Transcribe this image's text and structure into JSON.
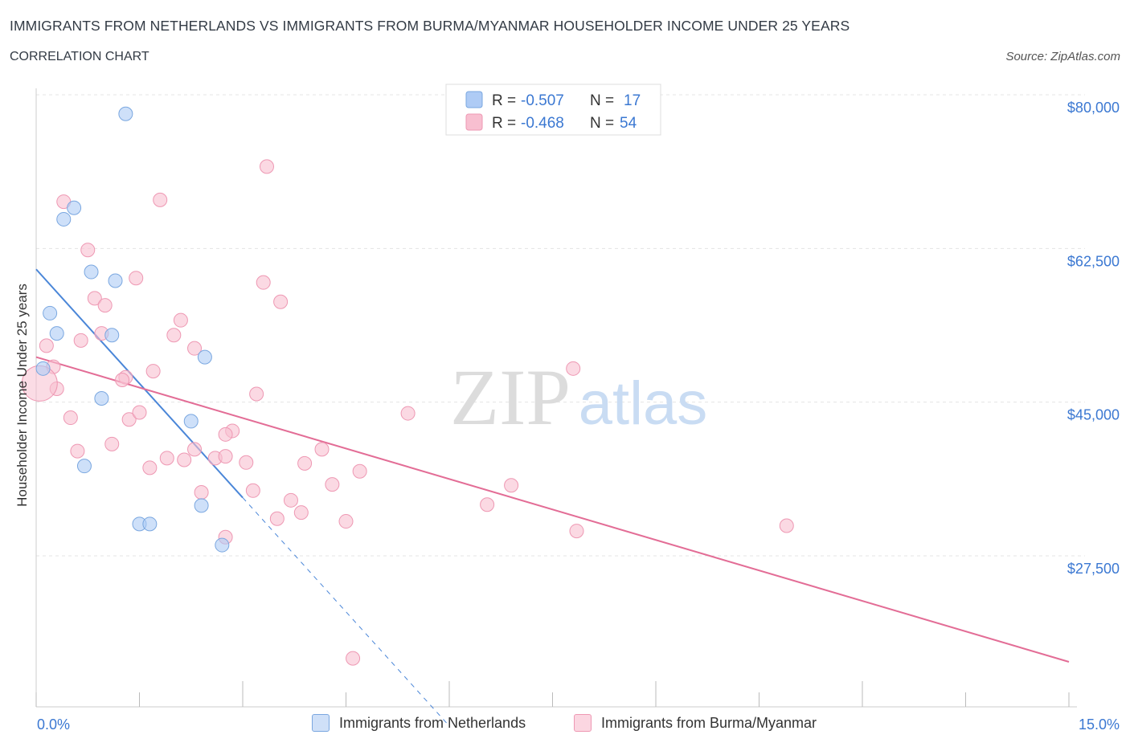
{
  "header": {
    "title": "IMMIGRANTS FROM NETHERLANDS VS IMMIGRANTS FROM BURMA/MYANMAR HOUSEHOLDER INCOME UNDER 25 YEARS",
    "subtitle": "CORRELATION CHART",
    "source": "Source: ZipAtlas.com"
  },
  "watermark": {
    "zip": "ZIP",
    "atlas": "atlas"
  },
  "legend_top": [
    {
      "r_label": "R =",
      "r_value": "-0.507",
      "n_label": "N =",
      "n_value": "17",
      "color": "#aecbf5"
    },
    {
      "r_label": "R =",
      "r_value": "-0.468",
      "n_label": "N =",
      "n_value": "54",
      "color": "#f8bfd0"
    }
  ],
  "legend_bottom": [
    {
      "label": "Immigrants from Netherlands",
      "color": "#aecbf5"
    },
    {
      "label": "Immigrants from Burma/Myanmar",
      "color": "#f8bfd0"
    }
  ],
  "chart_data": {
    "type": "scatter",
    "ylabel": "Householder Income Under 25 years",
    "xlim": [
      0,
      15
    ],
    "ylim": [
      10000,
      82000
    ],
    "x_tick_labels": [
      "0.0%",
      "15.0%"
    ],
    "y_ticks": [
      27500,
      45000,
      62500,
      80000
    ],
    "y_tick_labels": [
      "$27,500",
      "$45,000",
      "$62,500",
      "$80,000"
    ],
    "grid": true,
    "colors": {
      "netherlands": "#4a86d8",
      "burma": "#e36d96",
      "axis_text": "#3b78d2"
    },
    "series": [
      {
        "name": "Immigrants from Netherlands",
        "color": "#aecbf5",
        "stroke": "#7aa7e0",
        "points": [
          [
            1.3,
            79.2
          ],
          [
            0.4,
            67.2
          ],
          [
            0.55,
            68.5
          ],
          [
            0.8,
            61.2
          ],
          [
            1.15,
            60.2
          ],
          [
            0.2,
            56.5
          ],
          [
            0.3,
            54.2
          ],
          [
            1.1,
            54.0
          ],
          [
            0.1,
            50.2
          ],
          [
            2.45,
            51.5
          ],
          [
            0.95,
            46.8
          ],
          [
            2.25,
            44.2
          ],
          [
            0.7,
            39.1
          ],
          [
            2.4,
            34.6
          ],
          [
            1.5,
            32.5
          ],
          [
            1.65,
            32.5
          ],
          [
            2.7,
            30.1
          ]
        ],
        "trend": {
          "x0": 0.0,
          "y0": 61.5,
          "x1": 3.0,
          "y1": 35.5,
          "dash_x1": 6.0
        }
      },
      {
        "name": "Immigrants from Burma/Myanmar",
        "color": "#f8bfd0",
        "stroke": "#ee98b3",
        "points": [
          [
            0.4,
            69.2
          ],
          [
            1.8,
            69.4
          ],
          [
            3.35,
            73.2
          ],
          [
            0.75,
            63.7
          ],
          [
            1.45,
            60.5
          ],
          [
            3.3,
            60.0
          ],
          [
            0.85,
            58.2
          ],
          [
            3.55,
            57.8
          ],
          [
            1.0,
            57.4
          ],
          [
            2.1,
            55.7
          ],
          [
            0.95,
            54.2
          ],
          [
            2.0,
            54.0
          ],
          [
            0.65,
            53.4
          ],
          [
            0.15,
            52.8
          ],
          [
            2.3,
            52.5
          ],
          [
            0.25,
            50.4
          ],
          [
            1.7,
            49.9
          ],
          [
            1.3,
            49.2
          ],
          [
            1.25,
            48.9
          ],
          [
            0.3,
            47.9
          ],
          [
            3.2,
            47.3
          ],
          [
            7.8,
            50.2
          ],
          [
            5.4,
            45.1
          ],
          [
            0.5,
            44.6
          ],
          [
            1.35,
            44.4
          ],
          [
            1.5,
            45.2
          ],
          [
            2.85,
            43.1
          ],
          [
            2.75,
            42.7
          ],
          [
            1.1,
            41.6
          ],
          [
            0.6,
            40.8
          ],
          [
            4.15,
            41.0
          ],
          [
            2.3,
            41.0
          ],
          [
            1.9,
            40.0
          ],
          [
            2.6,
            40.0
          ],
          [
            2.75,
            40.2
          ],
          [
            2.15,
            39.8
          ],
          [
            3.05,
            39.5
          ],
          [
            3.9,
            39.4
          ],
          [
            1.65,
            38.9
          ],
          [
            4.7,
            38.5
          ],
          [
            4.3,
            37.0
          ],
          [
            6.9,
            36.9
          ],
          [
            3.15,
            36.3
          ],
          [
            2.4,
            36.1
          ],
          [
            3.7,
            35.2
          ],
          [
            6.55,
            34.7
          ],
          [
            3.85,
            33.8
          ],
          [
            3.5,
            33.1
          ],
          [
            4.5,
            32.8
          ],
          [
            10.9,
            32.3
          ],
          [
            7.85,
            31.7
          ],
          [
            2.75,
            31.0
          ],
          [
            4.6,
            17.2
          ],
          [
            0.05,
            48.5
          ]
        ],
        "trend": {
          "x0": 0.0,
          "y0": 51.5,
          "x1": 15.0,
          "y1": 16.8
        }
      }
    ]
  }
}
